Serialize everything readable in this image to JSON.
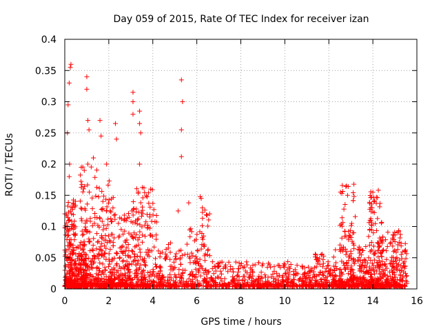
{
  "chart_data": {
    "type": "scatter",
    "title": "Day 059 of 2015, Rate Of TEC Index for receiver izan",
    "xlabel": "GPS time / hours",
    "ylabel": "ROTI / TECUs",
    "xlim": [
      0,
      16
    ],
    "ylim": [
      0,
      0.4
    ],
    "grid": true,
    "marker": "+",
    "color": "#ff0000",
    "x_ticks": [
      0,
      2,
      4,
      6,
      8,
      10,
      12,
      14,
      16
    ],
    "x_tick_labels": [
      "0",
      "2",
      "4",
      "6",
      "8",
      "10",
      "12",
      "14",
      "16"
    ],
    "y_ticks": [
      0,
      0.05,
      0.1,
      0.15,
      0.2,
      0.25,
      0.3,
      0.35,
      0.4
    ],
    "y_tick_labels": [
      "0",
      "0.05",
      "0.1",
      "0.15",
      "0.2",
      "0.25",
      "0.3",
      "0.35",
      "0.4"
    ],
    "notable_points": [
      {
        "x": 0.15,
        "y": 0.295
      },
      {
        "x": 0.2,
        "y": 0.33
      },
      {
        "x": 0.25,
        "y": 0.355
      },
      {
        "x": 0.28,
        "y": 0.36
      },
      {
        "x": 0.12,
        "y": 0.25
      },
      {
        "x": 0.2,
        "y": 0.18
      },
      {
        "x": 0.22,
        "y": 0.2
      },
      {
        "x": 1.0,
        "y": 0.34
      },
      {
        "x": 1.0,
        "y": 0.32
      },
      {
        "x": 1.05,
        "y": 0.27
      },
      {
        "x": 1.1,
        "y": 0.255
      },
      {
        "x": 1.05,
        "y": 0.2
      },
      {
        "x": 1.3,
        "y": 0.21
      },
      {
        "x": 1.6,
        "y": 0.27
      },
      {
        "x": 1.65,
        "y": 0.245
      },
      {
        "x": 1.9,
        "y": 0.2
      },
      {
        "x": 2.3,
        "y": 0.265
      },
      {
        "x": 2.35,
        "y": 0.24
      },
      {
        "x": 3.1,
        "y": 0.315
      },
      {
        "x": 3.1,
        "y": 0.3
      },
      {
        "x": 3.1,
        "y": 0.28
      },
      {
        "x": 3.4,
        "y": 0.285
      },
      {
        "x": 3.4,
        "y": 0.265
      },
      {
        "x": 3.45,
        "y": 0.25
      },
      {
        "x": 3.4,
        "y": 0.2
      },
      {
        "x": 3.9,
        "y": 0.16
      },
      {
        "x": 5.3,
        "y": 0.335
      },
      {
        "x": 5.35,
        "y": 0.3
      },
      {
        "x": 5.3,
        "y": 0.255
      },
      {
        "x": 5.3,
        "y": 0.212
      },
      {
        "x": 5.15,
        "y": 0.125
      },
      {
        "x": 6.2,
        "y": 0.145
      },
      {
        "x": 6.25,
        "y": 0.13
      },
      {
        "x": 12.8,
        "y": 0.165
      },
      {
        "x": 12.85,
        "y": 0.15
      },
      {
        "x": 14.0,
        "y": 0.155
      },
      {
        "x": 14.05,
        "y": 0.14
      },
      {
        "x": 15.1,
        "y": 0.09
      }
    ],
    "seed_clusters": [
      {
        "x0": 0.0,
        "x1": 0.5,
        "ymax": 0.14,
        "n": 260
      },
      {
        "x0": 0.5,
        "x1": 1.0,
        "ymax": 0.07,
        "n": 160
      },
      {
        "x0": 0.7,
        "x1": 1.5,
        "ymax": 0.2,
        "n": 200
      },
      {
        "x0": 1.5,
        "x1": 2.2,
        "ymax": 0.17,
        "n": 200
      },
      {
        "x0": 2.2,
        "x1": 3.0,
        "ymax": 0.12,
        "n": 170
      },
      {
        "x0": 3.0,
        "x1": 4.2,
        "ymax": 0.16,
        "n": 260
      },
      {
        "x0": 4.2,
        "x1": 5.6,
        "ymax": 0.07,
        "n": 170
      },
      {
        "x0": 5.6,
        "x1": 6.6,
        "ymax": 0.145,
        "n": 140
      },
      {
        "x0": 6.6,
        "x1": 11.2,
        "ymax": 0.04,
        "n": 480
      },
      {
        "x0": 11.2,
        "x1": 12.5,
        "ymax": 0.06,
        "n": 180
      },
      {
        "x0": 12.5,
        "x1": 13.2,
        "ymax": 0.165,
        "n": 180
      },
      {
        "x0": 13.2,
        "x1": 13.8,
        "ymax": 0.07,
        "n": 110
      },
      {
        "x0": 13.8,
        "x1": 14.4,
        "ymax": 0.155,
        "n": 200
      },
      {
        "x0": 14.4,
        "x1": 15.55,
        "ymax": 0.09,
        "n": 230
      }
    ]
  }
}
